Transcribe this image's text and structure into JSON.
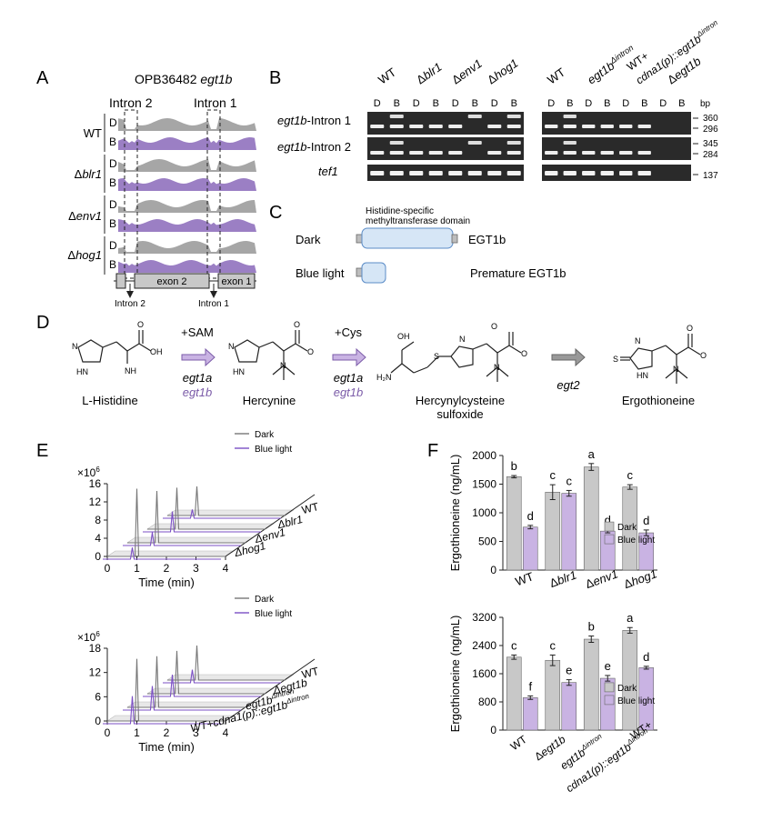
{
  "panels": {
    "A": "A",
    "B": "B",
    "C": "C",
    "D": "D",
    "E": "E",
    "F": "F"
  },
  "panel_a": {
    "title_plain": "OPB36482 ",
    "title_italic": "egt1b",
    "intron2": "Intron 2",
    "intron1": "Intron 1",
    "strains": [
      {
        "prefix": "",
        "italic": "",
        "plain": "WT"
      },
      {
        "prefix": "Δ",
        "italic": "blr1",
        "plain": ""
      },
      {
        "prefix": "Δ",
        "italic": "env1",
        "plain": ""
      },
      {
        "prefix": "Δ",
        "italic": "hog1",
        "plain": ""
      }
    ],
    "dark": "D",
    "blue": "B",
    "exon2": "exon 2",
    "exon1": "exon 1",
    "bottom_intron2": "Intron 2",
    "bottom_intron1": "Intron 1",
    "colors": {
      "dark": "#a6a6a6",
      "blue": "#9b7fc4"
    }
  },
  "panel_b": {
    "left_lanes": [
      {
        "prefix": "",
        "italic": "",
        "plain": "WT"
      },
      {
        "prefix": "Δ",
        "italic": "blr1",
        "plain": ""
      },
      {
        "prefix": "Δ",
        "italic": "env1",
        "plain": ""
      },
      {
        "prefix": "Δ",
        "italic": "hog1",
        "plain": ""
      }
    ],
    "right_lanes": [
      {
        "type": "plain",
        "text": "WT"
      },
      {
        "type": "sup",
        "italic": "egt1b",
        "sup": "Δintron"
      },
      {
        "type": "wt_cdna",
        "line1": "WT+",
        "line2_italic": "cdna1(p)::egt1b",
        "line2_sup": "Δintron"
      },
      {
        "type": "delta",
        "italic": "egt1b"
      }
    ],
    "dark": "D",
    "blue": "B",
    "rows": [
      {
        "italic": "egt1b",
        "plain": "-Intron 1"
      },
      {
        "italic": "egt1b",
        "plain": "-Intron 2"
      },
      {
        "italic": "tef1",
        "plain": ""
      }
    ],
    "bp": "bp",
    "sizes": [
      "360",
      "296",
      "345",
      "284",
      "137"
    ]
  },
  "panel_c": {
    "domain_label_1": "Histidine-specific",
    "domain_label_2": "methyltransferase domain",
    "dark": "Dark",
    "blue": "Blue light",
    "protein": "EGT1b",
    "premature": "Premature EGT1b"
  },
  "panel_d": {
    "sam": "+SAM",
    "cys": "+Cys",
    "enz1a": "egt1a",
    "enz1b": "egt1b",
    "enz2a": "egt1a",
    "enz2b": "egt1b",
    "enz3": "egt2",
    "compounds": [
      "L-Histidine",
      "Hercynine",
      "Hercynylcysteine",
      "sulfoxide",
      "Ergothioneine"
    ],
    "atoms": {
      "oh": "OH",
      "o": "O",
      "om": "O",
      "nh": "N",
      "nh2": "NH",
      "hn": "HN",
      "nplus": "N",
      "s": "S",
      "ho": "OH",
      "h2n": "H₂N",
      "sp": "S"
    }
  },
  "panel_e": {
    "multiplier": "×10",
    "exp": "6",
    "top": {
      "yticks": [
        "0",
        "4",
        "8",
        "12",
        "16"
      ],
      "strains": [
        "WT",
        "Δblr1",
        "Δenv1",
        "Δhog1"
      ]
    },
    "bottom": {
      "yticks": [
        "0",
        "6",
        "12",
        "18"
      ],
      "strains": [
        "WT",
        "Δegt1b",
        "egt1b",
        "WT+cdna1(p)::egt1b"
      ]
    },
    "xticks": [
      "0",
      "1",
      "2",
      "3",
      "4"
    ],
    "xlabel": "Time (min)",
    "legend_dark": "Dark",
    "legend_blue": "Blue light",
    "sup_intron": "Δintron"
  },
  "chart_data": [
    {
      "type": "bar",
      "ylabel": "Ergothioneine (ng/mL)",
      "ylim": [
        0,
        2000
      ],
      "yticks": [
        "0",
        "500",
        "1000",
        "1500",
        "2000"
      ],
      "categories": [
        "WT",
        "Δblr1",
        "Δenv1",
        "Δhog1"
      ],
      "series": [
        {
          "name": "Dark",
          "values": [
            1630,
            1360,
            1800,
            1450
          ],
          "errors": [
            20,
            130,
            60,
            40
          ],
          "letters": [
            "b",
            "c",
            "a",
            "c"
          ],
          "color": "#c8c8c8"
        },
        {
          "name": "Blue light",
          "values": [
            750,
            1340,
            680,
            650
          ],
          "errors": [
            30,
            50,
            30,
            50
          ],
          "letters": [
            "d",
            "c",
            "d",
            "d"
          ],
          "color": "#c9b3e3"
        }
      ]
    },
    {
      "type": "bar",
      "ylabel": "Ergothioneine (ng/mL)",
      "ylim": [
        0,
        3200
      ],
      "yticks": [
        "0",
        "800",
        "1600",
        "2400",
        "3200"
      ],
      "categories": [
        "WT",
        "Δegt1b",
        "egt1b",
        "WT+cdna1(p)::egt1b"
      ],
      "series": [
        {
          "name": "Dark",
          "values": [
            2070,
            1980,
            2580,
            2830
          ],
          "errors": [
            60,
            150,
            90,
            80
          ],
          "letters": [
            "c",
            "c",
            "b",
            "a"
          ],
          "color": "#c8c8c8"
        },
        {
          "name": "Blue light",
          "values": [
            920,
            1350,
            1470,
            1770
          ],
          "errors": [
            50,
            80,
            80,
            40
          ],
          "letters": [
            "f",
            "e",
            "e",
            "d"
          ],
          "color": "#c9b3e3"
        }
      ]
    }
  ]
}
